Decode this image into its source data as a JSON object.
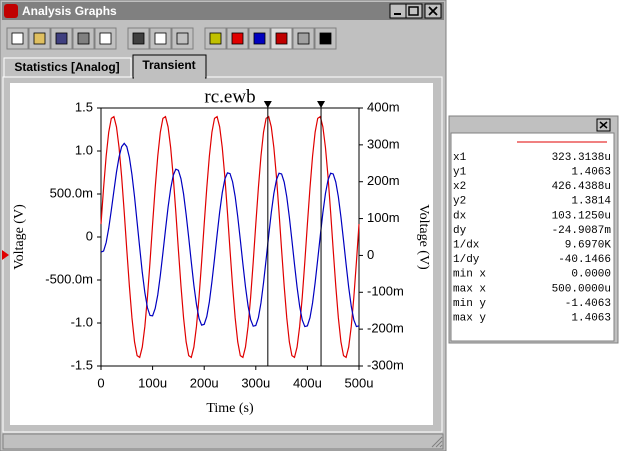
{
  "window": {
    "title": "Analysis Graphs"
  },
  "tabs": [
    "Statistics [Analog]",
    "Transient"
  ],
  "chart_data": {
    "type": "line",
    "title": "rc.ewb",
    "xlabel": "Time (s)",
    "ylabel": "Voltage (V)",
    "y2label": "Voltage (V)",
    "x": [
      0,
      5,
      10,
      15,
      20,
      25,
      30,
      35,
      40,
      45,
      50,
      55,
      60,
      65,
      70,
      75,
      80,
      85,
      90,
      95,
      100,
      105,
      110,
      115,
      120,
      125,
      130,
      135,
      140,
      145,
      150,
      155,
      160,
      165,
      170,
      175,
      180,
      185,
      190,
      195,
      200,
      205,
      210,
      215,
      220,
      225,
      230,
      235,
      240,
      245,
      250,
      255,
      260,
      265,
      270,
      275,
      280,
      285,
      290,
      295,
      300,
      305,
      310,
      315,
      320,
      325,
      330,
      335,
      340,
      345,
      350,
      355,
      360,
      365,
      370,
      375,
      380,
      385,
      390,
      395,
      400,
      405,
      410,
      415,
      420,
      425,
      430,
      435,
      440,
      445,
      450,
      455,
      460,
      465,
      470,
      475,
      480,
      485,
      490,
      495,
      500
    ],
    "series": [
      {
        "color": "#e00000",
        "values": [
          0.15,
          0.57,
          0.94,
          1.22,
          1.38,
          1.4,
          1.28,
          1.04,
          0.7,
          0.29,
          -0.15,
          -0.57,
          -0.94,
          -1.22,
          -1.38,
          -1.4,
          -1.28,
          -1.04,
          -0.7,
          -0.29,
          0.15,
          0.57,
          0.94,
          1.22,
          1.38,
          1.4,
          1.28,
          1.04,
          0.7,
          0.29,
          -0.15,
          -0.57,
          -0.94,
          -1.22,
          -1.38,
          -1.4,
          -1.28,
          -1.04,
          -0.7,
          -0.29,
          0.15,
          0.57,
          0.94,
          1.22,
          1.38,
          1.4,
          1.28,
          1.04,
          0.7,
          0.29,
          -0.15,
          -0.57,
          -0.94,
          -1.22,
          -1.38,
          -1.4,
          -1.28,
          -1.04,
          -0.7,
          -0.29,
          0.15,
          0.57,
          0.94,
          1.22,
          1.38,
          1.4,
          1.28,
          1.04,
          0.7,
          0.29,
          -0.15,
          -0.57,
          -0.94,
          -1.22,
          -1.38,
          -1.4,
          -1.28,
          -1.04,
          -0.7,
          -0.29,
          0.15,
          0.57,
          0.94,
          1.22,
          1.38,
          1.4,
          1.28,
          1.04,
          0.7,
          0.29,
          -0.15,
          -0.57,
          -0.94,
          -1.22,
          -1.38,
          -1.4,
          -1.28,
          -1.04,
          -0.7,
          -0.29,
          0.15
        ]
      },
      {
        "color": "#0000c0",
        "axis": "y2",
        "values": [
          9,
          12,
          35,
          74,
          123,
          175,
          226,
          267,
          295,
          304,
          295,
          266,
          219,
          159,
          90,
          21,
          -46,
          -101,
          -142,
          -163,
          -164,
          -144,
          -107,
          -54,
          7,
          70,
          131,
          181,
          217,
          234,
          231,
          208,
          167,
          111,
          48,
          -18,
          -81,
          -133,
          -171,
          -189,
          -187,
          -166,
          -126,
          -71,
          -9,
          56,
          118,
          170,
          207,
          224,
          222,
          200,
          160,
          105,
          42,
          -23,
          -85,
          -137,
          -174,
          -192,
          -190,
          -169,
          -129,
          -74,
          -11,
          54,
          116,
          168,
          205,
          223,
          221,
          199,
          159,
          104,
          41,
          -24,
          -86,
          -138,
          -175,
          -193,
          -191,
          -169,
          -129,
          -74,
          -11,
          54,
          116,
          168,
          205,
          223,
          221,
          199,
          159,
          104,
          41,
          -24,
          -86,
          -138,
          -175,
          -193,
          -191
        ]
      }
    ],
    "cursors": [
      323.3138,
      426.4388
    ],
    "xlim": [
      0,
      500
    ],
    "xticks": [
      0,
      {
        "value": 100,
        "label": "100u"
      },
      {
        "value": 200,
        "label": "200u"
      },
      {
        "value": 300,
        "label": "300u"
      },
      {
        "value": 400,
        "label": "400u"
      },
      {
        "value": 500,
        "label": "500u"
      }
    ],
    "ylim": [
      -1.5,
      1.5
    ],
    "yticks": [
      1.5,
      {
        "value": 1,
        "label": "1.0"
      },
      {
        "value": 0.5,
        "label": "500.0m"
      },
      0,
      {
        "value": -0.5,
        "label": "-500.0m"
      },
      {
        "value": -1,
        "label": "-1.0"
      },
      -1.5
    ],
    "y2lim": [
      -300,
      400
    ],
    "y2ticks": [
      {
        "value": 400,
        "label": "400m"
      },
      {
        "value": 300,
        "label": "300m"
      },
      {
        "value": 200,
        "label": "200m"
      },
      {
        "value": 100,
        "label": "100m"
      },
      0,
      {
        "value": -100,
        "label": "-100m"
      },
      {
        "value": -200,
        "label": "-200m"
      },
      {
        "value": -300,
        "label": "-300m"
      }
    ],
    "grid": false
  },
  "cursor_panel": {
    "rows": [
      [
        "x1",
        "323.3138u"
      ],
      [
        "y1",
        "1.4063"
      ],
      [
        "x2",
        "426.4388u"
      ],
      [
        "y2",
        "1.3814"
      ],
      [
        "dx",
        "103.1250u"
      ],
      [
        "dy",
        "-24.9087m"
      ],
      [
        "1/dx",
        "9.6970K"
      ],
      [
        "1/dy",
        "-40.1466"
      ],
      [
        "min x",
        "0.0000"
      ],
      [
        "max x",
        "500.0000u"
      ],
      [
        "min y",
        "-1.4063"
      ],
      [
        "max y",
        "1.4063"
      ]
    ]
  }
}
